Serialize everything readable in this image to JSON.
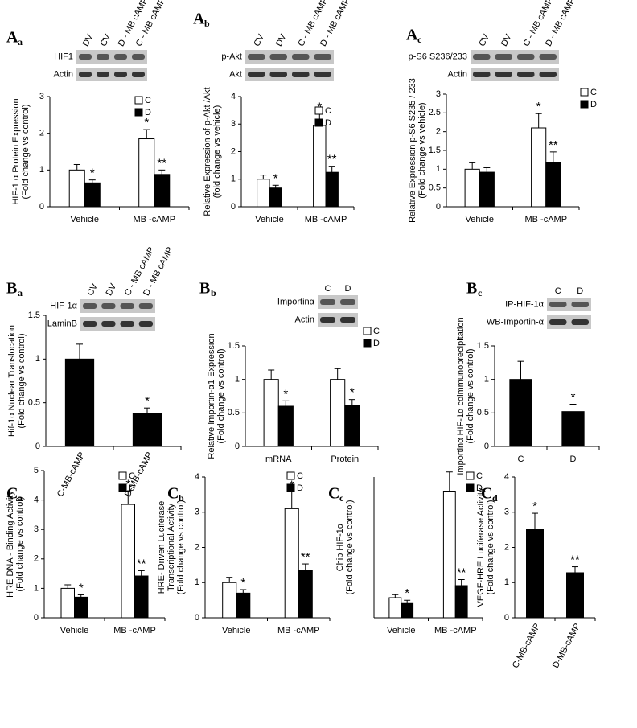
{
  "chart_data": [
    {
      "type": "bar",
      "panel": "A",
      "panel_sub": "a",
      "blot": {
        "lanes": [
          "DV",
          "CV",
          "D - MB cAMP",
          "C - MB cAMP"
        ],
        "bands": [
          "HIF1",
          "Actin"
        ]
      },
      "ylabel": [
        "HIF-1 α Protein Expression",
        "(Fold change vs control)"
      ],
      "categories": [
        "Vehicle",
        "MB -cAMP"
      ],
      "ylim": [
        0,
        3
      ],
      "yticks": [
        0,
        1,
        2,
        3
      ],
      "series": [
        {
          "name": "C",
          "color": "#ffffff",
          "values": [
            1.0,
            1.85
          ],
          "errors": [
            0.15,
            0.25
          ],
          "significance": [
            null,
            "*"
          ]
        },
        {
          "name": "D",
          "color": "#000000",
          "values": [
            0.65,
            0.88
          ],
          "errors": [
            0.08,
            0.12
          ],
          "significance": [
            "*",
            "**"
          ]
        }
      ]
    },
    {
      "type": "bar",
      "panel": "A",
      "panel_sub": "b",
      "blot": {
        "lanes": [
          "CV",
          "DV",
          "C - MB cAMP",
          "D - MB cAMP"
        ],
        "bands": [
          "p-Akt",
          "Akt"
        ]
      },
      "ylabel": [
        "Relative Expression of p-Akt /Akt",
        "(fold change vs vehicle)"
      ],
      "categories": [
        "Vehicle",
        "MB -cAMP"
      ],
      "ylim": [
        0,
        4
      ],
      "yticks": [
        0,
        1,
        2,
        3,
        4
      ],
      "series": [
        {
          "name": "C",
          "color": "#ffffff",
          "values": [
            1.0,
            2.95
          ],
          "errors": [
            0.15,
            0.42
          ],
          "significance": [
            null,
            "*"
          ]
        },
        {
          "name": "D",
          "color": "#000000",
          "values": [
            0.68,
            1.25
          ],
          "errors": [
            0.1,
            0.22
          ],
          "significance": [
            "*",
            "**"
          ]
        }
      ]
    },
    {
      "type": "bar",
      "panel": "A",
      "panel_sub": "c",
      "blot": {
        "lanes": [
          "CV",
          "DV",
          "C - MB cAMP",
          "D - MB cAMP"
        ],
        "bands": [
          "p-S6 S236/233",
          "Actin"
        ]
      },
      "ylabel": [
        "Relative Expression  p-S6 S235 / 233",
        "(Fold change vs vehicle)"
      ],
      "categories": [
        "Vehicle",
        "MB -cAMP"
      ],
      "ylim": [
        0,
        3
      ],
      "yticks": [
        0,
        0.5,
        1,
        1.5,
        2,
        2.5,
        3
      ],
      "series": [
        {
          "name": "C",
          "color": "#ffffff",
          "values": [
            1.0,
            2.1
          ],
          "errors": [
            0.17,
            0.38
          ],
          "significance": [
            null,
            "*"
          ]
        },
        {
          "name": "D",
          "color": "#000000",
          "values": [
            0.92,
            1.18
          ],
          "errors": [
            0.12,
            0.28
          ],
          "significance": [
            null,
            "**"
          ]
        }
      ]
    },
    {
      "type": "bar",
      "panel": "B",
      "panel_sub": "a",
      "blot": {
        "lanes": [
          "CV",
          "DV",
          "C - MB cAMP",
          "D - MB cAMP"
        ],
        "bands": [
          "HIF-1α",
          "LaminB"
        ]
      },
      "ylabel": [
        "Hif-1α Nuclear Translocation",
        "(Fold change vs control)"
      ],
      "categories": [
        "C-MB-cAMP",
        "D-MB-cAMP"
      ],
      "ylim": [
        0,
        1.5
      ],
      "yticks": [
        0,
        0.5,
        1,
        1.5
      ],
      "series": [
        {
          "color": "#000000",
          "values": [
            1.0,
            0.38
          ],
          "errors": [
            0.17,
            0.06
          ],
          "significance": [
            null,
            "*"
          ]
        }
      ]
    },
    {
      "type": "bar",
      "panel": "B",
      "panel_sub": "b",
      "blot": {
        "lanes": [
          "C",
          "D"
        ],
        "bands": [
          "Importinα",
          "Actin"
        ]
      },
      "ylabel": [
        "Relative Importin-α1 Expression",
        "(Fold change vs control)"
      ],
      "categories": [
        "mRNA",
        "Protein"
      ],
      "ylim": [
        0,
        1.5
      ],
      "yticks": [
        0,
        0.5,
        1,
        1.5
      ],
      "series": [
        {
          "name": "C",
          "color": "#ffffff",
          "values": [
            1.0,
            1.0
          ],
          "errors": [
            0.14,
            0.16
          ],
          "significance": [
            null,
            null
          ]
        },
        {
          "name": "D",
          "color": "#000000",
          "values": [
            0.6,
            0.61
          ],
          "errors": [
            0.08,
            0.09
          ],
          "significance": [
            "*",
            "*"
          ]
        }
      ]
    },
    {
      "type": "bar",
      "panel": "B",
      "panel_sub": "c",
      "blot": {
        "lanes": [
          "C",
          "D"
        ],
        "bands": [
          "IP-HIF-1α",
          "WB-Importin-α"
        ]
      },
      "ylabel": [
        "Importinα HIF-1α  coimmunoprecipitation",
        "(Fold change vs control)"
      ],
      "categories": [
        "C",
        "D"
      ],
      "ylim": [
        0,
        1.5
      ],
      "yticks": [
        0,
        0.5,
        1,
        1.5
      ],
      "series": [
        {
          "color": "#000000",
          "values": [
            1.0,
            0.52
          ],
          "errors": [
            0.27,
            0.11
          ],
          "significance": [
            null,
            "*"
          ]
        }
      ]
    },
    {
      "type": "bar",
      "panel": "C",
      "panel_sub": "a",
      "ylabel": [
        "HRE DNA - Binding Activity",
        "(Fold change vs control)"
      ],
      "categories": [
        "Vehicle",
        "MB -cAMP"
      ],
      "ylim": [
        0,
        5
      ],
      "yticks": [
        0,
        1,
        2,
        3,
        4,
        5
      ],
      "series": [
        {
          "name": "C",
          "color": "#ffffff",
          "values": [
            1.0,
            3.85
          ],
          "errors": [
            0.12,
            0.45
          ],
          "significance": [
            null,
            "*"
          ]
        },
        {
          "name": "D",
          "color": "#000000",
          "values": [
            0.7,
            1.42
          ],
          "errors": [
            0.08,
            0.18
          ],
          "significance": [
            "*",
            "**"
          ]
        }
      ]
    },
    {
      "type": "bar",
      "panel": "C",
      "panel_sub": "b",
      "ylabel": [
        "HRE- Driven Luciferase",
        "Transcriptional Activity",
        "(Fold change vs control)"
      ],
      "categories": [
        "Vehicle",
        "MB -cAMP"
      ],
      "ylim": [
        0,
        4
      ],
      "yticks": [
        0,
        1,
        2,
        3,
        4
      ],
      "series": [
        {
          "name": "C",
          "color": "#ffffff",
          "values": [
            1.0,
            3.1
          ],
          "errors": [
            0.15,
            0.48
          ],
          "significance": [
            null,
            "*"
          ]
        },
        {
          "name": "D",
          "color": "#000000",
          "values": [
            0.7,
            1.35
          ],
          "errors": [
            0.1,
            0.18
          ],
          "significance": [
            "*",
            "**"
          ]
        }
      ]
    },
    {
      "type": "bar",
      "panel": "C",
      "panel_sub": "c",
      "ylabel": [
        "Chip HIF-1α",
        "(Fold change vs control)"
      ],
      "categories": [
        "Vehicle",
        "MB -cAMP"
      ],
      "ylim": [
        0,
        7
      ],
      "yticks": [],
      "series": [
        {
          "name": "C",
          "color": "#ffffff",
          "values": [
            1.0,
            6.3
          ],
          "errors": [
            0.15,
            0.95
          ],
          "significance": [
            null,
            null
          ]
        },
        {
          "name": "D",
          "color": "#000000",
          "values": [
            0.75,
            1.6
          ],
          "errors": [
            0.12,
            0.3
          ],
          "significance": [
            "*",
            "**"
          ]
        }
      ]
    },
    {
      "type": "bar",
      "panel": "C",
      "panel_sub": "d",
      "ylabel": [
        "VEGF-HRE Luciferase Activity",
        "(Fold change vs control)"
      ],
      "categories": [
        "C-MB-cAMP",
        "D-MB-cAMP"
      ],
      "ylim": [
        0,
        4
      ],
      "yticks": [
        0,
        1,
        2,
        3,
        4
      ],
      "series": [
        {
          "color": "#000000",
          "values": [
            2.52,
            1.28
          ],
          "errors": [
            0.45,
            0.17
          ],
          "significance": [
            "*",
            "**"
          ]
        }
      ]
    }
  ]
}
